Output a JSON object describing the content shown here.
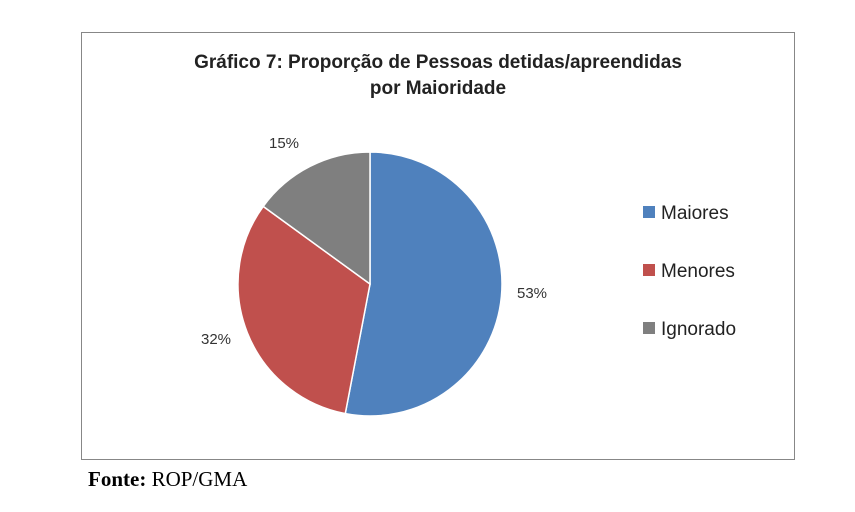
{
  "chart_data": {
    "type": "pie",
    "title": "Gráfico 7: Proporção de Pessoas detidas/apreendidas",
    "title_line2": "por Maioridade",
    "categories": [
      "Maiores",
      "Menores",
      "Ignorado"
    ],
    "values": [
      53,
      32,
      15
    ],
    "labels": [
      "53%",
      "32%",
      "15%"
    ],
    "colors": [
      "#4f81bd",
      "#c0504d",
      "#7f7f7f"
    ],
    "legend_position": "right"
  },
  "source": {
    "label": "Fonte:",
    "value": "ROP/GMA"
  }
}
